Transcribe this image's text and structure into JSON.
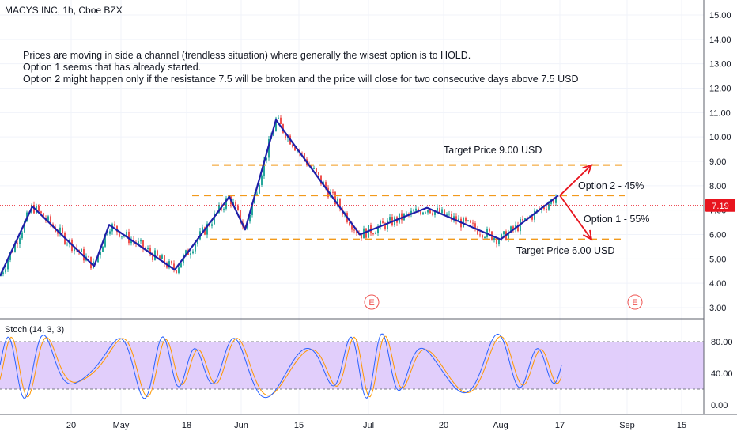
{
  "title": "MACYS INC, 1h, Cboe BZX",
  "notes": [
    "Prices are moving in side a channel (trendless situation) where generally the wisest option is to HOLD.",
    "Option 1 seems that has already started.",
    "Option 2 might happen only if the resistance 7.5 will be broken and the price will close for two consecutive days above 7.5 USD"
  ],
  "colors": {
    "wave": "#1f1fa8",
    "dashed": "#f29a1c",
    "arrow": "#e8141e",
    "price_line": "#e8141e",
    "stoch_fill": "#dcc6fa",
    "stoch_k": "#2962ff",
    "stoch_d": "#ff9800",
    "up": "#26a69a",
    "down": "#ef5350",
    "earnings": "#ef5350"
  },
  "chart_data": [
    {
      "type": "line",
      "panel": "price",
      "title": "MACYS INC, 1h, Cboe BZX",
      "x_ticks": [
        "20",
        "May",
        "18",
        "Jun",
        "15",
        "Jul",
        "20",
        "Aug",
        "17",
        "Sep",
        "15"
      ],
      "y_ticks": [
        "3.00",
        "4.00",
        "5.00",
        "6.00",
        "7.00",
        "8.00",
        "9.00",
        "10.00",
        "11.00",
        "12.00",
        "13.00",
        "14.00",
        "15.00"
      ],
      "ylim": [
        2.6,
        15.6
      ],
      "current_price": "7.19",
      "series": [
        {
          "role": "wave",
          "x": [
            0,
            41,
            119,
            138,
            221,
            290,
            310,
            349,
            455,
            540,
            633,
            706
          ],
          "y": [
            4.3,
            7.15,
            4.7,
            6.4,
            4.55,
            7.55,
            6.2,
            10.7,
            6.0,
            7.1,
            5.8,
            7.6
          ]
        }
      ],
      "levels": [
        {
          "y": 8.85,
          "label": "Target Price 9.00 USD"
        },
        {
          "y": 7.6,
          "label": ""
        },
        {
          "y": 5.8,
          "label": "Target Price 6.00 USD"
        }
      ],
      "options": [
        {
          "label": "Option 2 - 45%",
          "target": 8.85
        },
        {
          "label": "Option 1 - 55%",
          "target": 5.8
        }
      ],
      "earnings_marker": "E"
    },
    {
      "type": "line",
      "panel": "oscillator",
      "title": "Stoch (14, 3, 3)",
      "y_ticks": [
        "0.00",
        "40.00",
        "80.00"
      ],
      "band": [
        20,
        80
      ],
      "ylim": [
        -8,
        102
      ]
    }
  ]
}
